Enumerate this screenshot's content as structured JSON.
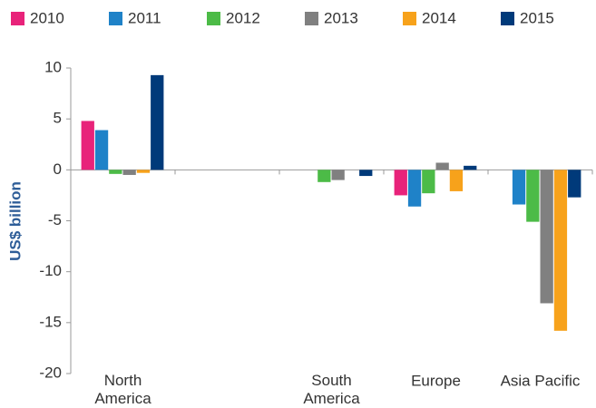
{
  "chart_data": {
    "type": "bar",
    "ylabel": "US$ billion",
    "categories": [
      "North\nAmerica",
      null,
      "South\nAmerica",
      "Europe",
      "Asia Pacific"
    ],
    "series": [
      {
        "name": "2010",
        "color": "#e8237a",
        "values": [
          4.8,
          null,
          null,
          -2.5,
          null
        ]
      },
      {
        "name": "2011",
        "color": "#1f82c8",
        "values": [
          3.9,
          null,
          null,
          -3.6,
          -3.4
        ]
      },
      {
        "name": "2012",
        "color": "#4cbb47",
        "values": [
          -0.4,
          null,
          -1.2,
          -2.3,
          -5.1
        ]
      },
      {
        "name": "2013",
        "color": "#808080",
        "values": [
          -0.5,
          null,
          -1.0,
          0.7,
          -13.1
        ]
      },
      {
        "name": "2014",
        "color": "#f7a21b",
        "values": [
          -0.3,
          null,
          null,
          -2.1,
          -15.8
        ]
      },
      {
        "name": "2015",
        "color": "#003a7a",
        "values": [
          9.3,
          null,
          -0.6,
          0.4,
          -2.7
        ]
      }
    ],
    "ylim": [
      -20,
      10
    ],
    "yticks": [
      -20,
      -15,
      -10,
      -5,
      0,
      5,
      10
    ]
  }
}
